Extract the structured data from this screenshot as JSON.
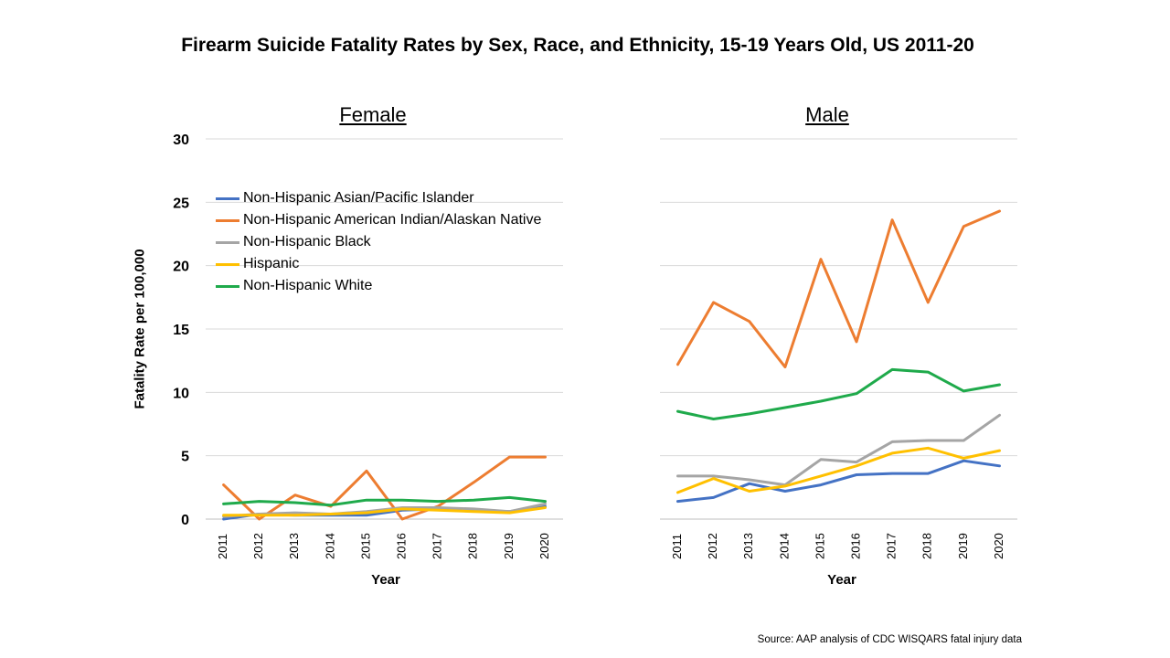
{
  "title": "Firearm Suicide Fatality Rates by Sex, Race, and Ethnicity, 15-19 Years Old, US 2011-20",
  "source": "Source: AAP analysis of CDC WISQARS fatal injury data",
  "colors": {
    "asian_pi": "#4472C4",
    "aian": "#ED7D31",
    "black": "#A5A5A5",
    "hispanic": "#FFC000",
    "white": "#1FAA4B"
  },
  "chart_data": [
    {
      "type": "line",
      "title": "Female",
      "xlabel": "Year",
      "ylabel": "Fatality Rate per 100,000",
      "ylim": [
        0,
        30
      ],
      "yticks": [
        0,
        5,
        10,
        15,
        20,
        25,
        30
      ],
      "grid": true,
      "legend_position": "upper-left",
      "categories": [
        "2011",
        "2012",
        "2013",
        "2014",
        "2015",
        "2016",
        "2017",
        "2018",
        "2019",
        "2020"
      ],
      "series": [
        {
          "name": "Non-Hispanic Asian/Pacific  Islander",
          "color_key": "asian_pi",
          "values": [
            0.0,
            0.4,
            0.3,
            0.3,
            0.3,
            0.7,
            0.8,
            0.7,
            0.6,
            1.0
          ]
        },
        {
          "name": "Non-Hispanic American Indian/Alaskan Native",
          "color_key": "aian",
          "values": [
            2.7,
            0.0,
            1.9,
            1.0,
            3.8,
            0.0,
            1.0,
            2.9,
            4.9,
            4.9
          ]
        },
        {
          "name": "Non-Hispanic Black",
          "color_key": "black",
          "values": [
            0.2,
            0.4,
            0.5,
            0.4,
            0.6,
            0.9,
            0.9,
            0.8,
            0.6,
            1.2
          ]
        },
        {
          "name": "Hispanic",
          "color_key": "hispanic",
          "values": [
            0.3,
            0.3,
            0.3,
            0.4,
            0.5,
            0.8,
            0.7,
            0.6,
            0.5,
            0.9
          ]
        },
        {
          "name": "Non-Hispanic White",
          "color_key": "white",
          "values": [
            1.2,
            1.4,
            1.3,
            1.1,
            1.5,
            1.5,
            1.4,
            1.5,
            1.7,
            1.4
          ]
        }
      ]
    },
    {
      "type": "line",
      "title": "Male",
      "xlabel": "Year",
      "ylim": [
        0,
        30
      ],
      "grid": true,
      "categories": [
        "2011",
        "2012",
        "2013",
        "2014",
        "2015",
        "2016",
        "2017",
        "2018",
        "2019",
        "2020"
      ],
      "series": [
        {
          "name": "Non-Hispanic Asian/Pacific  Islander",
          "color_key": "asian_pi",
          "values": [
            1.4,
            1.7,
            2.8,
            2.2,
            2.7,
            3.5,
            3.6,
            3.6,
            4.6,
            4.2
          ]
        },
        {
          "name": "Non-Hispanic American Indian/Alaskan Native",
          "color_key": "aian",
          "values": [
            12.2,
            17.1,
            15.6,
            12.0,
            20.5,
            14.0,
            23.6,
            17.1,
            23.1,
            24.3
          ]
        },
        {
          "name": "Non-Hispanic Black",
          "color_key": "black",
          "values": [
            3.4,
            3.4,
            3.1,
            2.7,
            4.7,
            4.5,
            6.1,
            6.2,
            6.2,
            8.2
          ]
        },
        {
          "name": "Hispanic",
          "color_key": "hispanic",
          "values": [
            2.1,
            3.2,
            2.2,
            2.6,
            3.4,
            4.2,
            5.2,
            5.6,
            4.8,
            5.4
          ]
        },
        {
          "name": "Non-Hispanic White",
          "color_key": "white",
          "values": [
            8.5,
            7.9,
            8.3,
            8.8,
            9.3,
            9.9,
            11.8,
            11.6,
            10.1,
            10.6
          ]
        }
      ]
    }
  ]
}
